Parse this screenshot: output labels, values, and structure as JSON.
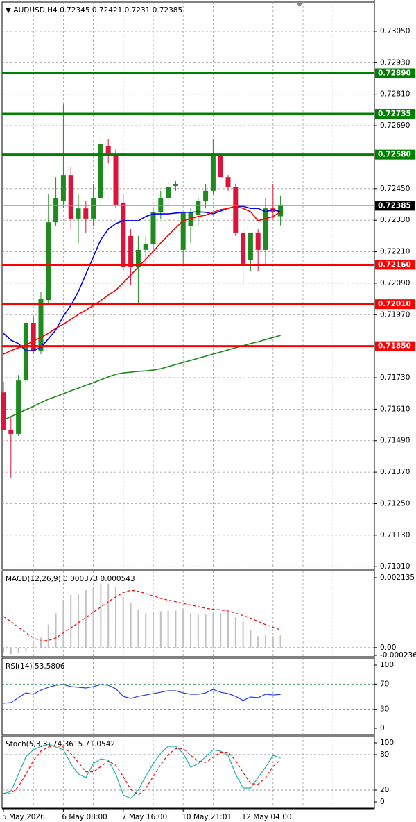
{
  "chart_data": [
    {
      "type": "candlestick",
      "title": "AUDUSD,H4",
      "categories": [
        "5 May 2026",
        null,
        null,
        null,
        null,
        null,
        null,
        null,
        "6 May 08:00",
        null,
        null,
        null,
        null,
        null,
        null,
        null,
        "7 May 16:00",
        null,
        null,
        null,
        null,
        null,
        null,
        null,
        "10 May 21:01",
        null,
        null,
        null,
        null,
        null,
        null,
        null,
        "12 May 04:00",
        null,
        null,
        null,
        null,
        null
      ],
      "open": [
        0.71674,
        0.71529,
        0.71516,
        0.71719,
        0.71939,
        0.71833,
        0.72026,
        0.72322,
        0.72402,
        0.72502,
        0.72336,
        0.72375,
        0.72336,
        0.72415,
        0.72613,
        0.72582,
        0.72397,
        0.7227,
        0.72151,
        0.72217,
        0.72238,
        0.72362,
        0.72415,
        0.7246,
        0.72217,
        0.72309,
        0.72349,
        0.72402,
        0.72442,
        0.72574,
        0.72494,
        0.72455,
        0.72283,
        0.72177,
        0.72283,
        0.72217,
        0.72375,
        0.72345
      ],
      "high": [
        0.71714,
        0.71582,
        0.7174,
        0.71965,
        0.71965,
        0.72058,
        0.72428,
        0.72494,
        0.72772,
        0.72534,
        0.72428,
        0.72402,
        0.72468,
        0.7264,
        0.7264,
        0.726,
        0.72428,
        0.72296,
        0.7227,
        0.7227,
        0.72375,
        0.72442,
        0.72481,
        0.72481,
        0.72362,
        0.72375,
        0.72415,
        0.72468,
        0.7264,
        0.72582,
        0.72502,
        0.72468,
        0.72296,
        0.72283,
        0.72296,
        0.72415,
        0.72468,
        0.72421
      ],
      "low": [
        0.71529,
        0.71349,
        0.71508,
        0.71701,
        0.7182,
        0.7182,
        0.72005,
        0.72309,
        0.72375,
        0.72296,
        0.72243,
        0.72283,
        0.72309,
        0.72389,
        0.72547,
        0.72375,
        0.72137,
        0.72084,
        0.72005,
        0.72151,
        0.72217,
        0.72336,
        0.72389,
        0.72442,
        0.72164,
        0.72243,
        0.72309,
        0.72375,
        0.72428,
        0.72494,
        0.72442,
        0.7227,
        0.72084,
        0.72137,
        0.72137,
        0.72164,
        0.72336,
        0.7231
      ],
      "close": [
        0.71529,
        0.71516,
        0.71719,
        0.71939,
        0.71833,
        0.72031,
        0.72322,
        0.72415,
        0.72502,
        0.72336,
        0.72375,
        0.72336,
        0.72415,
        0.72619,
        0.72574,
        0.72389,
        0.72151,
        0.72151,
        0.72217,
        0.72238,
        0.72362,
        0.72415,
        0.72455,
        0.72468,
        0.72362,
        0.72362,
        0.72402,
        0.72442,
        0.72574,
        0.72494,
        0.72455,
        0.72283,
        0.72164,
        0.72283,
        0.72217,
        0.72375,
        0.72362,
        0.72385
      ],
      "up_color": "#1f8b1f",
      "down_color": "#dc143c",
      "moving_averages": [
        {
          "color": "#0000ff",
          "values": [
            0.71899,
            0.71873,
            0.7186,
            0.71833,
            0.71833,
            0.71846,
            0.71878,
            0.71912,
            0.71965,
            0.72005,
            0.72058,
            0.72124,
            0.7219,
            0.72256,
            0.72296,
            0.72317,
            0.72328,
            0.72328,
            0.72328,
            0.72344,
            0.72354,
            0.72354,
            0.72354,
            0.72357,
            0.7236,
            0.7236,
            0.72362,
            0.7236,
            0.72354,
            0.72365,
            0.72375,
            0.72383,
            0.72383,
            0.72375,
            0.72375,
            0.72362,
            0.7237,
            0.72362
          ]
        },
        {
          "color": "#ff0000",
          "values": [
            0.7182,
            0.71833,
            0.71844,
            0.71854,
            0.7187,
            0.71883,
            0.71899,
            0.71918,
            0.71934,
            0.71952,
            0.71971,
            0.71987,
            0.72005,
            0.72024,
            0.72045,
            0.72063,
            0.72092,
            0.72121,
            0.72151,
            0.72182,
            0.72211,
            0.72243,
            0.72272,
            0.72301,
            0.72328,
            0.72336,
            0.72344,
            0.72349,
            0.7236,
            0.7237,
            0.72375,
            0.72383,
            0.72375,
            0.72362,
            0.72328,
            0.72336,
            0.72344,
            0.72362
          ]
        },
        {
          "color": "#1b8a1b",
          "values": [
            0.71569,
            0.71582,
            0.71595,
            0.71608,
            0.71621,
            0.71635,
            0.71648,
            0.71658,
            0.71669,
            0.7168,
            0.7169,
            0.71701,
            0.71711,
            0.71722,
            0.71733,
            0.71743,
            0.71748,
            0.71751,
            0.71754,
            0.71756,
            0.71759,
            0.71764,
            0.71772,
            0.7178,
            0.71788,
            0.71796,
            0.71804,
            0.71812,
            0.7182,
            0.71828,
            0.71836,
            0.71844,
            0.71852,
            0.7186,
            0.71867,
            0.71875,
            0.71883,
            0.71891
          ]
        }
      ],
      "levels": [
        {
          "value": 0.7289,
          "label": "0.72890",
          "color": "#008000"
        },
        {
          "value": 0.72735,
          "label": "0.72735",
          "color": "#008000"
        },
        {
          "value": 0.7258,
          "label": "0.72580",
          "color": "#008000"
        },
        {
          "value": 0.7216,
          "label": "0.72160",
          "color": "#ff0000"
        },
        {
          "value": 0.7201,
          "label": "0.72010",
          "color": "#ff0000"
        },
        {
          "value": 0.7185,
          "label": "0.71850",
          "color": "#ff0000"
        }
      ],
      "last_price": {
        "value": 0.72385,
        "label": "0.72385"
      },
      "ylim": [
        0.71,
        0.73161
      ],
      "yticks": [
        {
          "value": 0.7305,
          "label": "0.73050"
        },
        {
          "value": 0.7293,
          "label": "0.72930"
        },
        {
          "value": 0.7281,
          "label": "0.72810"
        },
        {
          "value": 0.7269,
          "label": "0.72690"
        },
        {
          "value": 0.7245,
          "label": "0.72450"
        },
        {
          "value": 0.7233,
          "label": "0.72330"
        },
        {
          "value": 0.7221,
          "label": "0.72210"
        },
        {
          "value": 0.7209,
          "label": "0.72090"
        },
        {
          "value": 0.7197,
          "label": "0.71970"
        },
        {
          "value": 0.7173,
          "label": "0.71730"
        },
        {
          "value": 0.7161,
          "label": "0.71610"
        },
        {
          "value": 0.7149,
          "label": "0.71490"
        },
        {
          "value": 0.7137,
          "label": "0.71370"
        },
        {
          "value": 0.7125,
          "label": "0.71250"
        },
        {
          "value": 0.7113,
          "label": "0.71130"
        },
        {
          "value": 0.7101,
          "label": "0.71010"
        }
      ],
      "grid": true
    },
    {
      "type": "bar",
      "title": "MACD(12,26,9)",
      "series": [
        {
          "style": "bar",
          "color": "#c0c0c0",
          "values": [
            -0.00015,
            -0.0002,
            -0.00015,
            -0.0001,
            0.0001,
            0.0003,
            0.0007,
            0.00105,
            0.00145,
            0.00161,
            0.00165,
            0.00175,
            0.00185,
            0.00195,
            0.00195,
            0.00185,
            0.00155,
            0.00135,
            0.00115,
            0.00105,
            0.00109,
            0.00111,
            0.00113,
            0.00113,
            0.00115,
            0.00105,
            0.00101,
            0.00101,
            0.00105,
            0.00105,
            0.00109,
            0.00095,
            0.00079,
            0.00055,
            0.00035,
            0.00039,
            0.00035,
            0.000373
          ]
        },
        {
          "style": "dashed",
          "color": "#ff0000",
          "values": [
            0.00095,
            0.0008,
            0.00062,
            0.00045,
            0.0003,
            0.0002,
            0.00022,
            0.0003,
            0.00045,
            0.0006,
            0.00076,
            0.00092,
            0.00108,
            0.00124,
            0.0014,
            0.00155,
            0.00168,
            0.00175,
            0.00172,
            0.00165,
            0.00158,
            0.0015,
            0.00145,
            0.0014,
            0.00135,
            0.0013,
            0.00125,
            0.0012,
            0.00117,
            0.00115,
            0.00112,
            0.00105,
            0.00098,
            0.0009,
            0.0008,
            0.0007,
            0.00062,
            0.000543
          ]
        }
      ],
      "ylim": [
        -0.000236,
        0.002135
      ],
      "yticks": [
        0.002135,
        {
          "value": 0,
          "label": "0.00"
        },
        -0.000236
      ],
      "levels": [
        0
      ],
      "level_color": "#9a9a9a"
    },
    {
      "type": "line",
      "title": "RSI(14)",
      "series": [
        {
          "style": "solid",
          "color": "#1e3cff",
          "values": [
            39.6,
            40.7,
            48.4,
            56.0,
            53.8,
            60.4,
            64.8,
            68.1,
            69.2,
            65.9,
            64.8,
            63.7,
            65.9,
            69.2,
            68.1,
            62.6,
            50.5,
            47.3,
            50.5,
            52.7,
            54.9,
            57.1,
            59.3,
            59.3,
            56.0,
            53.8,
            53.8,
            56.0,
            61.5,
            57.1,
            54.9,
            50.5,
            44.0,
            49.5,
            48.4,
            53.8,
            52.7,
            53.5806
          ]
        }
      ],
      "ylim": [
        0,
        100
      ],
      "yticks": [
        100,
        70,
        30,
        0
      ],
      "levels": [
        70,
        30
      ],
      "level_color": "#2e8b57"
    },
    {
      "type": "line",
      "title": "Stoch(5,3,3)",
      "series": [
        {
          "style": "solid",
          "color": "#20b2aa",
          "values": [
            14.1,
            17.6,
            47.1,
            76.5,
            88.2,
            94.1,
            97.6,
            92.9,
            88.2,
            64.7,
            47.1,
            41.2,
            64.7,
            72.9,
            70.6,
            47.1,
            11.8,
            5.9,
            20.0,
            43.5,
            64.7,
            82.4,
            94.1,
            94.1,
            82.4,
            58.8,
            64.7,
            76.5,
            88.2,
            85.9,
            78.8,
            47.1,
            23.5,
            23.5,
            41.2,
            58.8,
            78.8,
            74.3615
          ]
        },
        {
          "style": "dashed",
          "color": "#ff0000",
          "values": [
            14,
            14,
            26,
            47,
            70,
            86,
            93,
            95,
            93,
            82,
            67,
            51,
            51,
            60,
            69,
            62,
            43,
            21,
            12,
            23,
            43,
            63,
            80,
            90,
            90,
            79,
            69,
            67,
            76,
            84,
            84,
            70,
            50,
            31,
            30,
            41,
            60,
            71.0542
          ]
        }
      ],
      "ylim": [
        0,
        100
      ],
      "yticks": [
        100,
        80,
        20,
        0
      ],
      "levels": [
        80,
        20
      ],
      "level_color": "#9a9a9a"
    }
  ]
}
